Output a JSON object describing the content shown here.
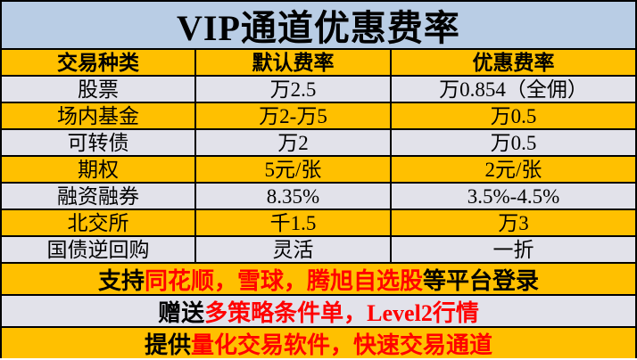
{
  "title": "VIP通道优惠费率",
  "colors": {
    "title_bg": "#b9cde5",
    "gold": "#ffc000",
    "gray": "#e2e2ea",
    "highlight_red": "#ff0000",
    "text_black": "#000000",
    "border": "#000000"
  },
  "table": {
    "headers": [
      "交易种类",
      "默认费率",
      "优惠费率"
    ],
    "rows": [
      {
        "bg": "gray",
        "cells": [
          "股票",
          "万2.5",
          "万0.854（全佣）"
        ]
      },
      {
        "bg": "gold",
        "cells": [
          "场内基金",
          "万2-万5",
          "万0.5"
        ]
      },
      {
        "bg": "gray",
        "cells": [
          "可转债",
          "万2",
          "万0.5"
        ]
      },
      {
        "bg": "gold",
        "cells": [
          "期权",
          "5元/张",
          "2元/张"
        ]
      },
      {
        "bg": "gray",
        "cells": [
          "融资融券",
          "8.35%",
          "3.5%-4.5%"
        ]
      },
      {
        "bg": "gold",
        "cells": [
          "北交所",
          "千1.5",
          "万3"
        ]
      },
      {
        "bg": "gray",
        "cells": [
          "国债逆回购",
          "灵活",
          "一折"
        ]
      }
    ]
  },
  "footer_rows": [
    {
      "bg": "gold",
      "segments": [
        {
          "text": "支持",
          "color": "black"
        },
        {
          "text": "同花顺，雪球，腾旭自选股",
          "color": "red"
        },
        {
          "text": "等平台登录",
          "color": "black"
        }
      ]
    },
    {
      "bg": "gray",
      "segments": [
        {
          "text": "赠送",
          "color": "black"
        },
        {
          "text": "多策略条件单，Level2行情",
          "color": "red"
        }
      ]
    },
    {
      "bg": "gold",
      "segments": [
        {
          "text": "提供",
          "color": "black"
        },
        {
          "text": "量化交易软件，快速交易通道",
          "color": "red"
        }
      ]
    }
  ]
}
